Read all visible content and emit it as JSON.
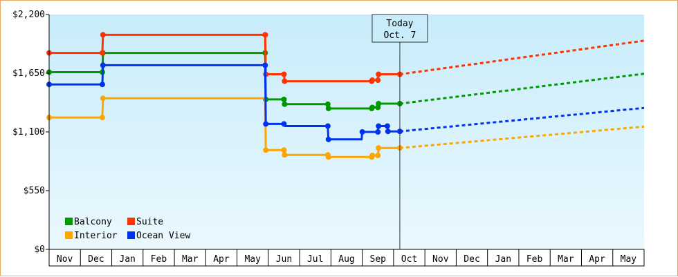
{
  "chart_data": {
    "type": "line",
    "title": "",
    "xlabel": "",
    "ylabel": "",
    "y_ticks": [
      {
        "value": 0,
        "label": "$0"
      },
      {
        "value": 550,
        "label": "$550"
      },
      {
        "value": 1100,
        "label": "$1,100"
      },
      {
        "value": 1650,
        "label": "$1,650"
      },
      {
        "value": 2200,
        "label": "$2,200"
      }
    ],
    "ylim": [
      0,
      2200
    ],
    "x_ticks": [
      "Nov",
      "Dec",
      "Jan",
      "Feb",
      "Mar",
      "Apr",
      "May",
      "Jun",
      "Jul",
      "Aug",
      "Sep",
      "Oct",
      "Nov",
      "Dec",
      "Jan",
      "Feb",
      "Mar",
      "Apr",
      "May"
    ],
    "x_range_months": [
      0,
      19
    ],
    "today_marker": {
      "line1": "Today",
      "line2": "Oct. 7",
      "x_month": 11.2
    },
    "grid": false,
    "legend_position": "bottom-left",
    "series": [
      {
        "name": "Balcony",
        "color": "#009900",
        "steps": [
          [
            0,
            1660
          ],
          [
            1.7,
            1660
          ],
          [
            1.72,
            1840
          ],
          [
            6.9,
            1840
          ],
          [
            6.92,
            1405
          ],
          [
            7.5,
            1405
          ],
          [
            7.52,
            1360
          ],
          [
            8.9,
            1360
          ],
          [
            8.92,
            1320
          ],
          [
            10.3,
            1320
          ],
          [
            10.32,
            1330
          ],
          [
            10.5,
            1330
          ],
          [
            10.52,
            1365
          ],
          [
            11.2,
            1365
          ]
        ],
        "markers": [
          [
            0,
            1660
          ],
          [
            1.7,
            1660
          ],
          [
            1.72,
            1840
          ],
          [
            6.9,
            1840
          ],
          [
            6.92,
            1405
          ],
          [
            7.5,
            1405
          ],
          [
            7.52,
            1360
          ],
          [
            8.9,
            1360
          ],
          [
            8.92,
            1320
          ],
          [
            10.3,
            1320
          ],
          [
            10.32,
            1330
          ],
          [
            10.5,
            1330
          ],
          [
            10.52,
            1365
          ],
          [
            11.2,
            1365
          ]
        ],
        "projection": [
          [
            11.2,
            1365
          ],
          [
            19,
            1645
          ]
        ]
      },
      {
        "name": "Suite",
        "color": "#ff3300",
        "steps": [
          [
            0,
            1840
          ],
          [
            1.7,
            1840
          ],
          [
            1.72,
            2010
          ],
          [
            6.9,
            2010
          ],
          [
            6.92,
            1640
          ],
          [
            7.5,
            1640
          ],
          [
            7.52,
            1575
          ],
          [
            10.3,
            1575
          ],
          [
            10.32,
            1585
          ],
          [
            10.5,
            1585
          ],
          [
            10.52,
            1640
          ],
          [
            11.2,
            1640
          ]
        ],
        "markers": [
          [
            0,
            1840
          ],
          [
            1.7,
            1840
          ],
          [
            1.72,
            2010
          ],
          [
            6.9,
            2010
          ],
          [
            6.92,
            1640
          ],
          [
            7.5,
            1640
          ],
          [
            7.52,
            1575
          ],
          [
            10.3,
            1575
          ],
          [
            10.32,
            1585
          ],
          [
            10.5,
            1585
          ],
          [
            10.52,
            1640
          ],
          [
            11.2,
            1640
          ]
        ],
        "projection": [
          [
            11.2,
            1640
          ],
          [
            19,
            1955
          ]
        ]
      },
      {
        "name": "Interior",
        "color": "#ffa500",
        "steps": [
          [
            0,
            1235
          ],
          [
            1.7,
            1235
          ],
          [
            1.72,
            1415
          ],
          [
            6.9,
            1415
          ],
          [
            6.92,
            930
          ],
          [
            7.5,
            930
          ],
          [
            7.52,
            885
          ],
          [
            8.9,
            885
          ],
          [
            8.92,
            865
          ],
          [
            10.3,
            865
          ],
          [
            10.32,
            880
          ],
          [
            10.5,
            880
          ],
          [
            10.52,
            950
          ],
          [
            11.2,
            950
          ]
        ],
        "markers": [
          [
            0,
            1235
          ],
          [
            1.7,
            1235
          ],
          [
            1.72,
            1415
          ],
          [
            6.92,
            930
          ],
          [
            7.5,
            930
          ],
          [
            7.52,
            885
          ],
          [
            8.9,
            885
          ],
          [
            8.92,
            865
          ],
          [
            10.3,
            865
          ],
          [
            10.32,
            880
          ],
          [
            10.5,
            880
          ],
          [
            10.52,
            950
          ],
          [
            11.2,
            950
          ]
        ],
        "projection": [
          [
            11.2,
            950
          ],
          [
            19,
            1150
          ]
        ]
      },
      {
        "name": "Ocean View",
        "color": "#0033ee",
        "steps": [
          [
            0,
            1545
          ],
          [
            1.7,
            1545
          ],
          [
            1.72,
            1725
          ],
          [
            6.9,
            1725
          ],
          [
            6.92,
            1175
          ],
          [
            7.5,
            1175
          ],
          [
            7.52,
            1155
          ],
          [
            8.9,
            1155
          ],
          [
            8.92,
            1030
          ],
          [
            9.98,
            1030
          ],
          [
            10.0,
            1100
          ],
          [
            10.5,
            1100
          ],
          [
            10.52,
            1155
          ],
          [
            10.8,
            1155
          ],
          [
            10.82,
            1105
          ],
          [
            11.2,
            1105
          ]
        ],
        "markers": [
          [
            0,
            1545
          ],
          [
            1.7,
            1545
          ],
          [
            1.72,
            1725
          ],
          [
            6.9,
            1725
          ],
          [
            6.92,
            1175
          ],
          [
            7.5,
            1175
          ],
          [
            8.9,
            1155
          ],
          [
            8.92,
            1030
          ],
          [
            10.0,
            1100
          ],
          [
            10.5,
            1100
          ],
          [
            10.52,
            1155
          ],
          [
            10.8,
            1155
          ],
          [
            10.82,
            1105
          ],
          [
            11.2,
            1105
          ]
        ],
        "projection": [
          [
            11.2,
            1105
          ],
          [
            19,
            1325
          ]
        ]
      }
    ]
  }
}
